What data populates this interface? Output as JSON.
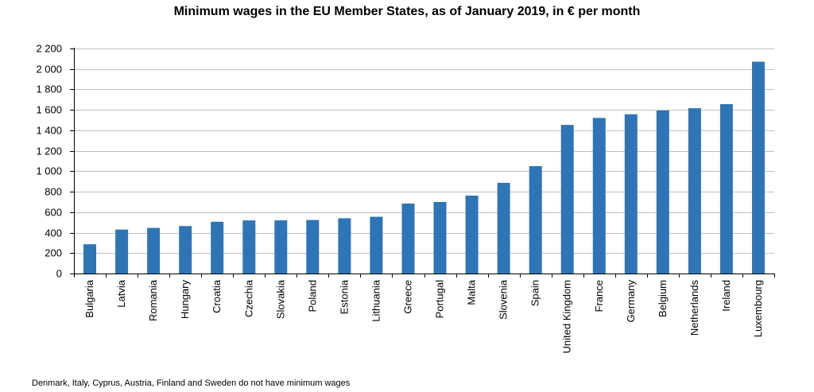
{
  "chart_data": {
    "type": "bar",
    "title": "Minimum  wages in the EU Member States, as of January 2019, in € per month",
    "xlabel": "",
    "ylabel": "",
    "ylim": [
      0,
      2200
    ],
    "yticks": [
      0,
      200,
      400,
      600,
      800,
      1000,
      1200,
      1400,
      1600,
      1800,
      2000,
      2200
    ],
    "ytick_labels": [
      "0",
      "200",
      "400",
      "600",
      "800",
      "1 000",
      "1 200",
      "1 400",
      "1 600",
      "1 800",
      "2 000",
      "2 200"
    ],
    "grid": true,
    "legend": "none",
    "bar_color": "#2E75B6",
    "categories": [
      "Bulgaria",
      "Latvia",
      "Romania",
      "Hungary",
      "Croatia",
      "Czechia",
      "Slovakia",
      "Poland",
      "Estonia",
      "Lithuania",
      "Greece",
      "Portugal",
      "Malta",
      "Slovenia",
      "Spain",
      "United Kingdom",
      "France",
      "Germany",
      "Belgium",
      "Netherlands",
      "Ireland",
      "Luxembourg"
    ],
    "values": [
      286,
      430,
      446,
      464,
      506,
      519,
      520,
      523,
      540,
      555,
      684,
      700,
      762,
      887,
      1050,
      1453,
      1521,
      1557,
      1594,
      1616,
      1656,
      2071
    ],
    "footnote": "Denmark, Italy,  Cyprus, Austria, Finland and Sweden do not have minimum  wages"
  }
}
